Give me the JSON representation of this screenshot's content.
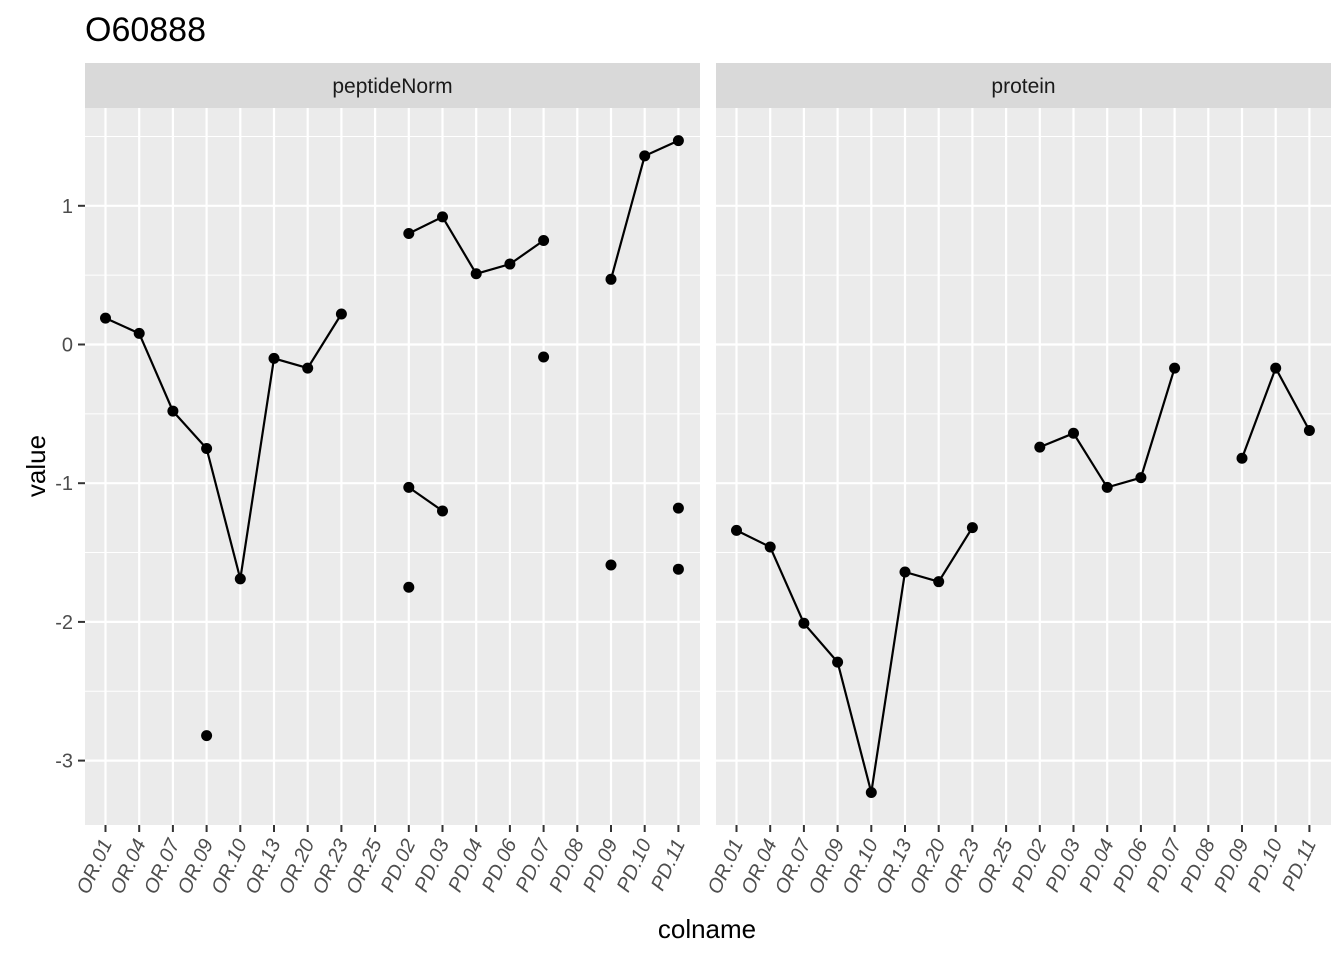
{
  "chart_data": {
    "type": "line",
    "title": "O60888",
    "xlabel": "colname",
    "ylabel": "value",
    "ylim": [
      -3.45,
      1.7
    ],
    "y_ticks": [
      1,
      0,
      -1,
      -2,
      -3
    ],
    "y_tick_labels": [
      "1",
      "0",
      "-1",
      "-2",
      "-3"
    ],
    "grid": true,
    "categories": [
      "OR.01",
      "OR.04",
      "OR.07",
      "OR.09",
      "OR.10",
      "OR.13",
      "OR.20",
      "OR.23",
      "OR.25",
      "PD.02",
      "PD.03",
      "PD.04",
      "PD.06",
      "PD.07",
      "PD.08",
      "PD.09",
      "PD.10",
      "PD.11"
    ],
    "facets": [
      {
        "label": "peptideNorm",
        "series": [
          {
            "points": [
              [
                "OR.01",
                0.19
              ],
              [
                "OR.04",
                0.08
              ],
              [
                "OR.07",
                -0.48
              ],
              [
                "OR.09",
                -0.75
              ],
              [
                "OR.10",
                -1.69
              ],
              [
                "OR.13",
                -0.1
              ],
              [
                "OR.20",
                -0.17
              ],
              [
                "OR.23",
                0.22
              ]
            ]
          },
          {
            "points": [
              [
                "PD.02",
                0.8
              ],
              [
                "PD.03",
                0.92
              ],
              [
                "PD.04",
                0.51
              ],
              [
                "PD.06",
                0.58
              ],
              [
                "PD.07",
                0.75
              ]
            ]
          },
          {
            "points": [
              [
                "PD.09",
                0.47
              ],
              [
                "PD.10",
                1.36
              ],
              [
                "PD.11",
                1.47
              ]
            ]
          },
          {
            "points": [
              [
                "PD.02",
                -1.03
              ],
              [
                "PD.03",
                -1.2
              ]
            ]
          },
          {
            "points": [
              [
                "OR.09",
                -2.82
              ]
            ]
          },
          {
            "points": [
              [
                "PD.02",
                -1.75
              ]
            ]
          },
          {
            "points": [
              [
                "PD.07",
                -0.09
              ]
            ]
          },
          {
            "points": [
              [
                "PD.09",
                -1.59
              ]
            ]
          },
          {
            "points": [
              [
                "PD.11",
                -1.18
              ]
            ]
          },
          {
            "points": [
              [
                "PD.11",
                -1.62
              ]
            ]
          }
        ]
      },
      {
        "label": "protein",
        "series": [
          {
            "points": [
              [
                "OR.01",
                -1.34
              ],
              [
                "OR.04",
                -1.46
              ],
              [
                "OR.07",
                -2.01
              ],
              [
                "OR.09",
                -2.29
              ],
              [
                "OR.10",
                -3.23
              ],
              [
                "OR.13",
                -1.64
              ],
              [
                "OR.20",
                -1.71
              ],
              [
                "OR.23",
                -1.32
              ]
            ]
          },
          {
            "points": [
              [
                "PD.02",
                -0.74
              ],
              [
                "PD.03",
                -0.64
              ],
              [
                "PD.04",
                -1.03
              ],
              [
                "PD.06",
                -0.96
              ],
              [
                "PD.07",
                -0.17
              ]
            ]
          },
          {
            "points": [
              [
                "PD.09",
                -0.82
              ],
              [
                "PD.10",
                -0.17
              ],
              [
                "PD.11",
                -0.62
              ]
            ]
          }
        ]
      }
    ]
  }
}
